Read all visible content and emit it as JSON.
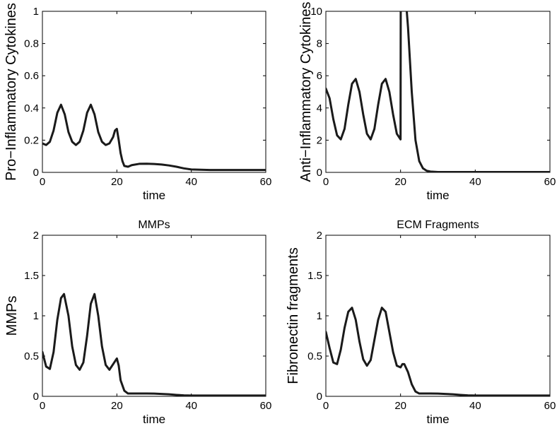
{
  "figure": {
    "panels": [
      {
        "id": "pro"
      },
      {
        "id": "anti"
      },
      {
        "id": "mmp"
      },
      {
        "id": "ecm"
      }
    ]
  },
  "chart_data": [
    {
      "type": "line",
      "title": "",
      "xlabel": "time",
      "ylabel": "Pro−Inflammatory Cytokines",
      "xlim": [
        0,
        60
      ],
      "ylim": [
        0,
        1
      ],
      "xticks": [
        "0",
        "20",
        "40",
        "60"
      ],
      "yticks": [
        "0",
        "0.2",
        "0.4",
        "0.6",
        "0.8",
        "1"
      ],
      "grid": false,
      "line_color": "#1a1a1a",
      "series": [
        {
          "x": [
            0,
            1,
            2,
            3,
            4,
            5,
            6,
            7,
            8,
            9,
            10,
            11,
            12,
            13,
            14,
            15,
            16,
            17,
            18,
            19,
            19.5,
            20,
            20.5,
            21,
            21.5,
            22,
            23,
            24,
            26,
            28,
            30,
            32,
            34,
            36,
            38,
            40,
            45,
            50,
            55,
            60
          ],
          "y": [
            0.18,
            0.17,
            0.19,
            0.26,
            0.37,
            0.42,
            0.36,
            0.25,
            0.19,
            0.17,
            0.19,
            0.26,
            0.37,
            0.42,
            0.36,
            0.25,
            0.19,
            0.17,
            0.18,
            0.22,
            0.26,
            0.27,
            0.2,
            0.12,
            0.07,
            0.04,
            0.035,
            0.045,
            0.053,
            0.054,
            0.052,
            0.049,
            0.043,
            0.035,
            0.025,
            0.018,
            0.015,
            0.015,
            0.015,
            0.015
          ]
        }
      ]
    },
    {
      "type": "line",
      "title": "",
      "xlabel": "time",
      "ylabel": "Anti−Inflammatory Cytokines",
      "xlim": [
        0,
        60
      ],
      "ylim": [
        0,
        10
      ],
      "xticks": [
        "0",
        "20",
        "40",
        "60"
      ],
      "yticks": [
        "0",
        "2",
        "4",
        "6",
        "8",
        "10"
      ],
      "grid": false,
      "line_color": "#1a1a1a",
      "series": [
        {
          "x": [
            0,
            1,
            2,
            3,
            4,
            5,
            6,
            7,
            8,
            9,
            10,
            11,
            12,
            13,
            14,
            15,
            16,
            17,
            18,
            19,
            20,
            20.05,
            20.5,
            21,
            21.5,
            22,
            23,
            24,
            25,
            26,
            27,
            28,
            30,
            32,
            35,
            40,
            45,
            50,
            55,
            60
          ],
          "y": [
            5.2,
            4.6,
            3.3,
            2.3,
            2.05,
            2.7,
            4.2,
            5.5,
            5.8,
            5.0,
            3.6,
            2.4,
            2.05,
            2.7,
            4.2,
            5.5,
            5.8,
            5.0,
            3.6,
            2.4,
            2.05,
            10.5,
            10.5,
            10.5,
            10.5,
            9.0,
            5.0,
            2.0,
            0.7,
            0.25,
            0.1,
            0.05,
            0.02,
            0.02,
            0.02,
            0.02,
            0.02,
            0.02,
            0.02,
            0.02
          ]
        }
      ]
    },
    {
      "type": "line",
      "title": "MMPs",
      "xlabel": "time",
      "ylabel": "MMPs",
      "xlim": [
        0,
        60
      ],
      "ylim": [
        0,
        2
      ],
      "xticks": [
        "0",
        "20",
        "40",
        "60"
      ],
      "yticks": [
        "0",
        "0.5",
        "1",
        "1.5",
        "2"
      ],
      "grid": false,
      "line_color": "#1a1a1a",
      "series": [
        {
          "x": [
            0,
            1,
            2,
            3,
            4,
            5,
            5.8,
            7,
            8,
            9,
            10,
            11,
            12,
            13,
            14,
            15,
            16,
            17,
            18,
            19,
            20,
            20.5,
            21,
            22,
            23,
            24,
            26,
            28,
            30,
            32,
            34,
            36,
            38,
            40,
            45,
            50,
            55,
            60
          ],
          "y": [
            0.55,
            0.37,
            0.34,
            0.55,
            0.95,
            1.22,
            1.27,
            1.0,
            0.62,
            0.39,
            0.33,
            0.42,
            0.75,
            1.15,
            1.27,
            1.0,
            0.62,
            0.39,
            0.33,
            0.4,
            0.47,
            0.38,
            0.2,
            0.07,
            0.035,
            0.035,
            0.035,
            0.035,
            0.034,
            0.03,
            0.025,
            0.018,
            0.012,
            0.01,
            0.01,
            0.01,
            0.01,
            0.01
          ]
        }
      ]
    },
    {
      "type": "line",
      "title": "ECM Fragments",
      "xlabel": "time",
      "ylabel": "Fibronectin fragments",
      "xlim": [
        0,
        60
      ],
      "ylim": [
        0,
        2
      ],
      "xticks": [
        "0",
        "20",
        "40",
        "60"
      ],
      "yticks": [
        "0",
        "0.5",
        "1",
        "1.5",
        "2"
      ],
      "grid": false,
      "line_color": "#1a1a1a",
      "series": [
        {
          "x": [
            0,
            1,
            2,
            3,
            4,
            5,
            6,
            7,
            8,
            9,
            10,
            11,
            12,
            13,
            14,
            15,
            16,
            17,
            18,
            19,
            20,
            20.5,
            21,
            22,
            23,
            24,
            25,
            26,
            28,
            30,
            32,
            34,
            36,
            38,
            40,
            45,
            50,
            55,
            60
          ],
          "y": [
            0.8,
            0.6,
            0.42,
            0.4,
            0.58,
            0.85,
            1.05,
            1.1,
            0.95,
            0.68,
            0.46,
            0.38,
            0.45,
            0.7,
            0.95,
            1.1,
            1.05,
            0.8,
            0.55,
            0.38,
            0.36,
            0.4,
            0.4,
            0.3,
            0.15,
            0.06,
            0.035,
            0.035,
            0.035,
            0.034,
            0.03,
            0.025,
            0.018,
            0.012,
            0.01,
            0.01,
            0.01,
            0.01,
            0.01
          ]
        }
      ]
    }
  ]
}
